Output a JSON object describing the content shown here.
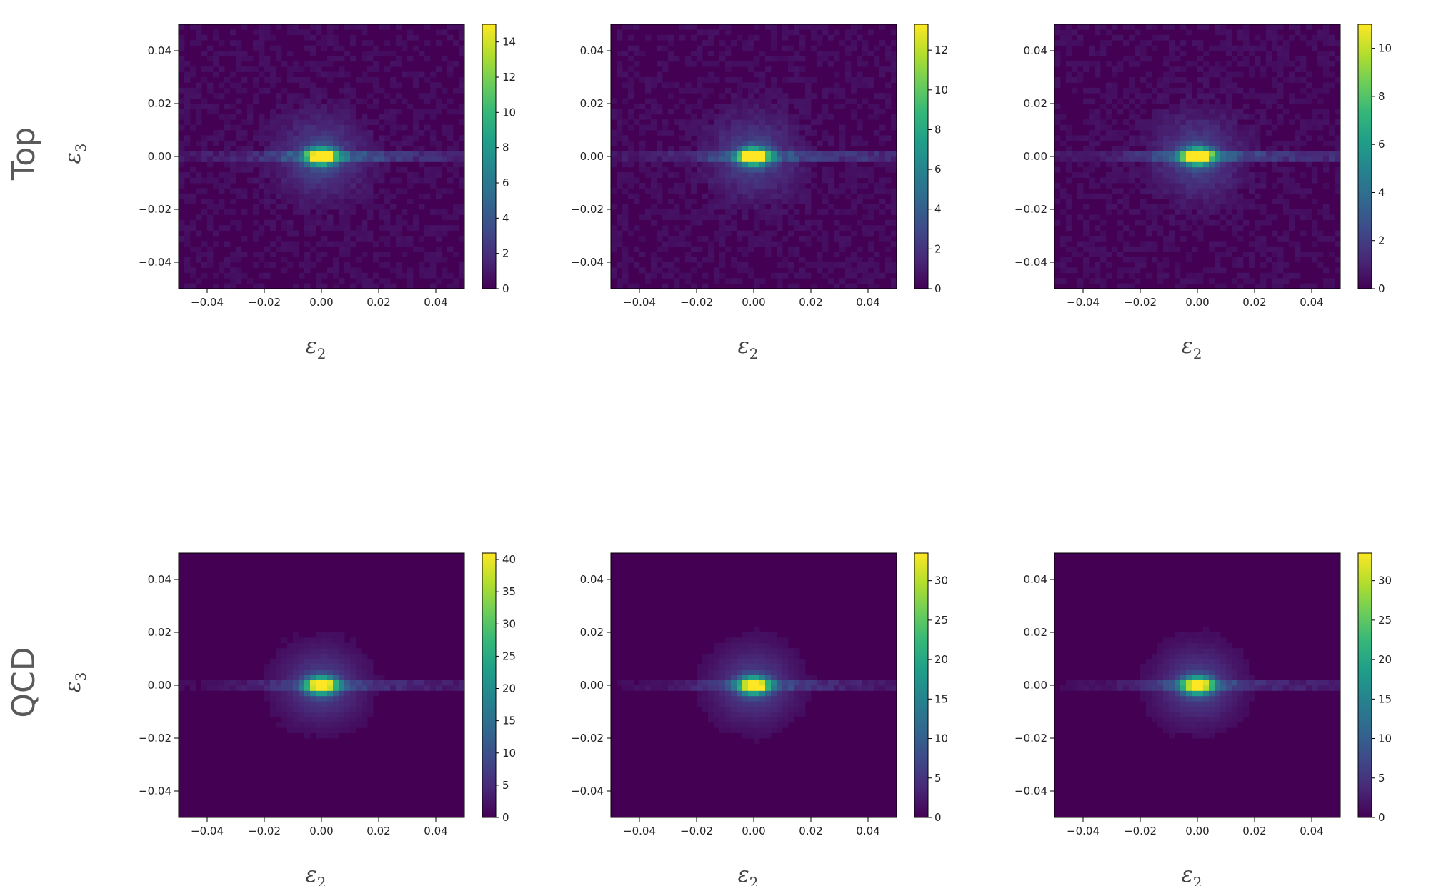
{
  "rows": [
    {
      "label": "Top"
    },
    {
      "label": "QCD"
    }
  ],
  "axis_labels": {
    "x": {
      "symbol": "ε",
      "sub": "2"
    },
    "y": {
      "symbol": "ε",
      "sub": "3"
    }
  },
  "colors": {
    "colormap": [
      "#440154",
      "#482878",
      "#3e4a89",
      "#31688e",
      "#26828e",
      "#1f9e89",
      "#35b779",
      "#6dcd59",
      "#b4de2c",
      "#fde725"
    ]
  },
  "chart_data": [
    {
      "type": "heatmap",
      "row": "Top",
      "column": 1,
      "xlim": [
        -0.05,
        0.05
      ],
      "ylim": [
        -0.05,
        0.05
      ],
      "xticks": [
        "−0.04",
        "−0.02",
        "0.00",
        "0.02",
        "0.04"
      ],
      "yticks": [
        "−0.04",
        "−0.02",
        "0.00",
        "0.02",
        "0.04"
      ],
      "colorbar": {
        "min": 0,
        "max": 15,
        "ticks": [
          "0",
          "2",
          "4",
          "6",
          "8",
          "10",
          "12",
          "14"
        ]
      },
      "peak": {
        "x": 0.0,
        "y": 0.0,
        "value": 15
      }
    },
    {
      "type": "heatmap",
      "row": "Top",
      "column": 2,
      "xlim": [
        -0.05,
        0.05
      ],
      "ylim": [
        -0.05,
        0.05
      ],
      "xticks": [
        "−0.04",
        "−0.02",
        "0.00",
        "0.02",
        "0.04"
      ],
      "yticks": [
        "−0.04",
        "−0.02",
        "0.00",
        "0.02",
        "0.04"
      ],
      "colorbar": {
        "min": 0,
        "max": 13.3,
        "ticks": [
          "0",
          "2",
          "4",
          "6",
          "8",
          "10",
          "12"
        ]
      },
      "peak": {
        "x": 0.0,
        "y": 0.0,
        "value": 13.3
      }
    },
    {
      "type": "heatmap",
      "row": "Top",
      "column": 3,
      "xlim": [
        -0.05,
        0.05
      ],
      "ylim": [
        -0.05,
        0.05
      ],
      "xticks": [
        "−0.04",
        "−0.02",
        "0.00",
        "0.02",
        "0.04"
      ],
      "yticks": [
        "−0.04",
        "−0.02",
        "0.00",
        "0.02",
        "0.04"
      ],
      "colorbar": {
        "min": 0,
        "max": 11,
        "ticks": [
          "0",
          "2",
          "4",
          "6",
          "8",
          "10"
        ]
      },
      "peak": {
        "x": 0.0,
        "y": 0.0,
        "value": 11
      }
    },
    {
      "type": "heatmap",
      "row": "QCD",
      "column": 1,
      "xlim": [
        -0.05,
        0.05
      ],
      "ylim": [
        -0.05,
        0.05
      ],
      "xticks": [
        "−0.04",
        "−0.02",
        "0.00",
        "0.02",
        "0.04"
      ],
      "yticks": [
        "−0.04",
        "−0.02",
        "0.00",
        "0.02",
        "0.04"
      ],
      "colorbar": {
        "min": 0,
        "max": 41,
        "ticks": [
          "0",
          "5",
          "10",
          "15",
          "20",
          "25",
          "30",
          "35",
          "40"
        ]
      },
      "peak": {
        "x": 0.0,
        "y": 0.0,
        "value": 41
      }
    },
    {
      "type": "heatmap",
      "row": "QCD",
      "column": 2,
      "xlim": [
        -0.05,
        0.05
      ],
      "ylim": [
        -0.05,
        0.05
      ],
      "xticks": [
        "−0.04",
        "−0.02",
        "0.00",
        "0.02",
        "0.04"
      ],
      "yticks": [
        "−0.04",
        "−0.02",
        "0.00",
        "0.02",
        "0.04"
      ],
      "colorbar": {
        "min": 0,
        "max": 33.5,
        "ticks": [
          "0",
          "5",
          "10",
          "15",
          "20",
          "25",
          "30"
        ]
      },
      "peak": {
        "x": 0.0,
        "y": 0.0,
        "value": 33.5
      }
    },
    {
      "type": "heatmap",
      "row": "QCD",
      "column": 3,
      "xlim": [
        -0.05,
        0.05
      ],
      "ylim": [
        -0.05,
        0.05
      ],
      "xticks": [
        "−0.04",
        "−0.02",
        "0.00",
        "0.02",
        "0.04"
      ],
      "yticks": [
        "−0.04",
        "−0.02",
        "0.00",
        "0.02",
        "0.04"
      ],
      "colorbar": {
        "min": 0,
        "max": 33.5,
        "ticks": [
          "0",
          "5",
          "10",
          "15",
          "20",
          "25",
          "30"
        ]
      },
      "peak": {
        "x": 0.0,
        "y": 0.0,
        "value": 33.5
      }
    }
  ]
}
